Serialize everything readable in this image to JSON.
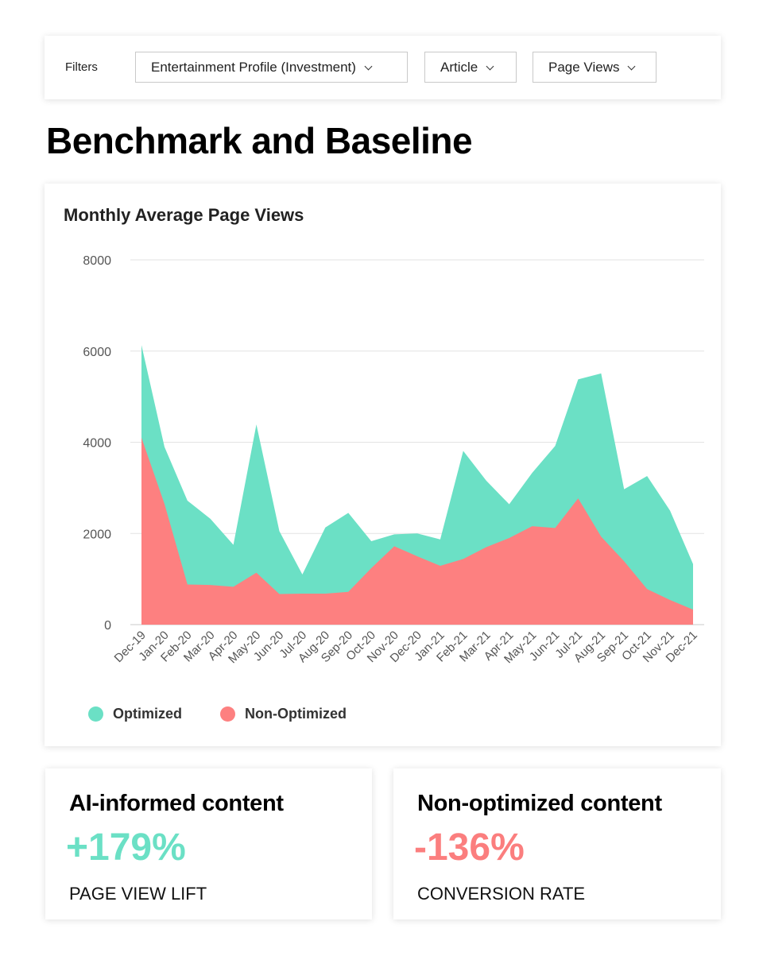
{
  "filters": {
    "label": "Filters",
    "profile": "Entertainment Profile (Investment)",
    "content_type": "Article",
    "metric": "Page Views"
  },
  "page_title": "Benchmark and Baseline",
  "chart_card": {
    "title": "Monthly Average Page Views"
  },
  "colors": {
    "optimized": "#6be0c5",
    "non_optimized": "#fd8080",
    "optimized_text": "#6be0c5",
    "non_optimized_text": "#fb7e7e"
  },
  "chart_data": {
    "type": "area",
    "title": "Monthly Average Page Views",
    "x": [
      "Dec-19",
      "Jan-20",
      "Feb-20",
      "Mar-20",
      "Apr-20",
      "May-20",
      "Jun-20",
      "Jul-20",
      "Aug-20",
      "Sep-20",
      "Oct-20",
      "Nov-20",
      "Dec-20",
      "Jan-21",
      "Feb-21",
      "Mar-21",
      "Apr-21",
      "May-21",
      "Jun-21",
      "Jul-21",
      "Aug-21",
      "Sep-21",
      "Oct-21",
      "Nov-21",
      "Dec-21"
    ],
    "series": [
      {
        "name": "Optimized",
        "values": [
          6130,
          3900,
          2720,
          2320,
          1750,
          4390,
          2050,
          1100,
          2130,
          2450,
          1830,
          1980,
          2000,
          1870,
          3810,
          3160,
          2640,
          3330,
          3920,
          5380,
          5510,
          2970,
          3260,
          2500,
          1330
        ]
      },
      {
        "name": "Non-Optimized",
        "values": [
          4100,
          2650,
          880,
          870,
          830,
          1140,
          670,
          680,
          680,
          720,
          1240,
          1720,
          1500,
          1290,
          1440,
          1700,
          1900,
          2160,
          2120,
          2770,
          1930,
          1390,
          780,
          540,
          330
        ]
      }
    ],
    "ylim": [
      0,
      8000
    ],
    "yticks": [
      0,
      2000,
      4000,
      6000,
      8000
    ],
    "grid": true,
    "legend": "bottom-left"
  },
  "stats": [
    {
      "title": "AI-informed content",
      "value": "+179%",
      "caption": "PAGE VIEW LIFT"
    },
    {
      "title": "Non-optimized content",
      "value": "-136%",
      "caption": "CONVERSION RATE"
    }
  ]
}
